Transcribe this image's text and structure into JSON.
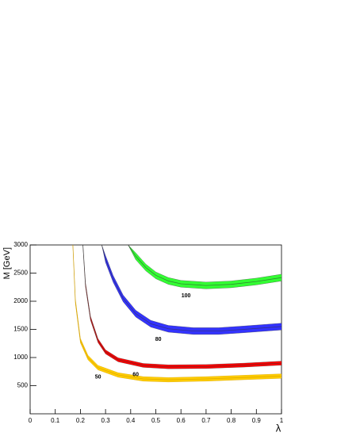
{
  "chart_data": {
    "type": "band",
    "x_label": "λ",
    "y_label": "M [GeV]",
    "xlim": [
      0,
      1
    ],
    "ylim": [
      0,
      3000
    ],
    "xticks": [
      0,
      0.1,
      0.2,
      0.3,
      0.4,
      0.5,
      0.6,
      0.7,
      0.8,
      0.9,
      1
    ],
    "yticks": [
      500,
      1000,
      1500,
      2000,
      2500,
      3000
    ],
    "series": [
      {
        "name": "50",
        "color": "#ffcc00",
        "x": [
          0.17,
          0.18,
          0.2,
          0.23,
          0.27,
          0.35,
          0.45,
          0.55,
          0.7,
          0.85,
          1
        ],
        "values": [
          3000,
          2000,
          1300,
          1000,
          820,
          690,
          620,
          605,
          620,
          645,
          670
        ],
        "lower": [
          3000,
          1960,
          1260,
          960,
          780,
          650,
          580,
          565,
          580,
          605,
          630
        ],
        "upper": [
          3000,
          2040,
          1340,
          1040,
          860,
          730,
          660,
          645,
          660,
          685,
          710
        ]
      },
      {
        "name": "60",
        "color": "#ff0000",
        "x": [
          0.21,
          0.22,
          0.24,
          0.27,
          0.3,
          0.35,
          0.45,
          0.55,
          0.7,
          0.85,
          1
        ],
        "values": [
          3000,
          2300,
          1700,
          1300,
          1100,
          960,
          860,
          835,
          840,
          865,
          900
        ],
        "lower": [
          3000,
          2265,
          1665,
          1265,
          1065,
          925,
          825,
          800,
          805,
          830,
          865
        ],
        "upper": [
          3000,
          2335,
          1735,
          1335,
          1135,
          995,
          895,
          870,
          875,
          900,
          935
        ]
      },
      {
        "name": "80",
        "color": "#3333ff",
        "x": [
          0.285,
          0.3,
          0.33,
          0.37,
          0.42,
          0.48,
          0.55,
          0.65,
          0.75,
          0.85,
          1
        ],
        "values": [
          3000,
          2750,
          2400,
          2050,
          1780,
          1600,
          1510,
          1470,
          1470,
          1500,
          1550
        ],
        "lower": [
          3000,
          2690,
          2340,
          1990,
          1720,
          1540,
          1450,
          1410,
          1410,
          1440,
          1490
        ],
        "upper": [
          3000,
          2810,
          2460,
          2110,
          1840,
          1660,
          1570,
          1530,
          1530,
          1560,
          1610
        ]
      },
      {
        "name": "100",
        "color": "#33ff33",
        "x": [
          0.39,
          0.42,
          0.46,
          0.5,
          0.55,
          0.6,
          0.7,
          0.8,
          0.9,
          1
        ],
        "values": [
          3000,
          2800,
          2600,
          2460,
          2360,
          2310,
          2280,
          2300,
          2350,
          2420
        ],
        "lower": [
          3000,
          2740,
          2540,
          2400,
          2300,
          2250,
          2220,
          2240,
          2290,
          2360
        ],
        "upper": [
          3000,
          2860,
          2660,
          2520,
          2420,
          2370,
          2340,
          2360,
          2410,
          2480
        ]
      }
    ]
  }
}
